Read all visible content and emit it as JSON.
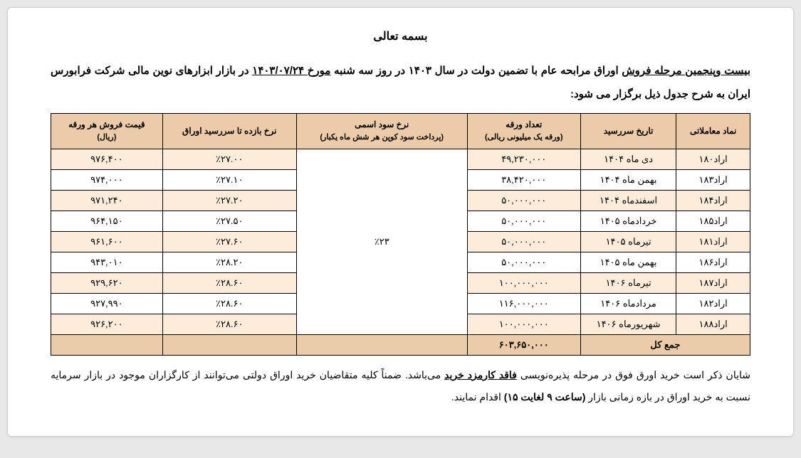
{
  "heading": "بسمه تعالی",
  "intro": {
    "prefix": "بیست وپنجمین مرحله فروش",
    "mid1": " اوراق مرابحه عام با تضمین دولت در سال ۱۴۰۳ در روز سه شنبه ",
    "date_label": "مورخ ۱۴۰۳/۰۷/۲۴",
    "mid2": " در بازار ابزارهای نوین مالی شرکت فرابورس ایران به شرح جدول ذیل برگزار می شود:"
  },
  "table": {
    "headers": {
      "symbol": "نماد معاملاتی",
      "maturity": "تاریخ سررسید",
      "count": "تعداد ورقه",
      "count_sub": "(ورقه یک میلیونی ریالی)",
      "coupon": "نرخ سود اسمی",
      "coupon_sub": "(پرداخت سود کوپن هر شش ماه یکبار)",
      "ytm": "نرخ بازده تا سررسید اوراق",
      "price": "قیمت فروش هر ورقه",
      "price_sub": "(ریال)"
    },
    "coupon_value": "٪۲۳",
    "rows": [
      {
        "symbol": "اراد۱۸۰",
        "maturity": "دی ماه ۱۴۰۴",
        "count": "۴۹,۲۳۰,۰۰۰",
        "ytm": "٪۲۷.۰۰",
        "price": "۹۷۶,۴۰۰"
      },
      {
        "symbol": "اراد۱۸۳",
        "maturity": "بهمن ماه ۱۴۰۴",
        "count": "۳۸,۴۲۰,۰۰۰",
        "ytm": "٪۲۷.۱۰",
        "price": "۹۷۴,۰۰۰"
      },
      {
        "symbol": "اراد۱۸۴",
        "maturity": "اسفندماه ۱۴۰۴",
        "count": "۵۰,۰۰۰,۰۰۰",
        "ytm": "٪۲۷.۲۰",
        "price": "۹۷۱,۲۴۰"
      },
      {
        "symbol": "اراد۱۸۵",
        "maturity": "خردادماه ۱۴۰۵",
        "count": "۵۰,۰۰۰,۰۰۰",
        "ytm": "٪۲۷.۵۰",
        "price": "۹۶۴,۱۵۰"
      },
      {
        "symbol": "اراد۱۸۱",
        "maturity": "تیرماه ۱۴۰۵",
        "count": "۵۰,۰۰۰,۰۰۰",
        "ytm": "٪۲۷.۶۰",
        "price": "۹۶۱,۶۰۰"
      },
      {
        "symbol": "اراد۱۸۶",
        "maturity": "بهمن ماه ۱۴۰۵",
        "count": "۵۰,۰۰۰,۰۰۰",
        "ytm": "٪۲۸.۲۰",
        "price": "۹۴۳,۰۱۰"
      },
      {
        "symbol": "اراد۱۸۷",
        "maturity": "تیرماه ۱۴۰۶",
        "count": "۱۰۰,۰۰۰,۰۰۰",
        "ytm": "٪۲۸.۶۰",
        "price": "۹۲۹,۶۲۰"
      },
      {
        "symbol": "اراد۱۸۲",
        "maturity": "مردادماه ۱۴۰۶",
        "count": "۱۱۶,۰۰۰,۰۰۰",
        "ytm": "٪۲۸.۶۰",
        "price": "۹۲۷,۹۹۰"
      },
      {
        "symbol": "اراد۱۸۸",
        "maturity": "شهریورماه ۱۴۰۶",
        "count": "۱۰۰,۰۰۰,۰۰۰",
        "ytm": "٪۲۸.۶۰",
        "price": "۹۲۶,۲۰۰"
      }
    ],
    "footer": {
      "label": "جمع کل",
      "total": "۶۰۳,۶۵۰,۰۰۰"
    }
  },
  "footnote": {
    "p1a": "شایان ذکر است خرید اورق فوق در مرحله پذیره‌نویسی ",
    "p1b": "فاقد کارمزد خرید",
    "p1c": " می‌باشد. ضمناً کلیه متقاضیان خرید اوراق دولتی می‌توانند از کارگزاران موجود در بازار سرمایه نسبت به خرید اوراق در بازه زمانی بازار ",
    "p1d": "(ساعت ۹ لغایت ۱۵)",
    "p1e": " اقدام نمایند."
  },
  "style": {
    "header_bg": "#eccba8",
    "row_odd_bg": "#fdecd9",
    "row_even_bg": "#ffffff",
    "border_color": "#000000",
    "page_bg": "#ffffff",
    "body_bg": "#e8e8e8",
    "font_family": "Tahoma",
    "heading_fontsize": 16,
    "intro_fontsize": 15,
    "cell_fontsize": 13,
    "footnote_fontsize": 14
  }
}
